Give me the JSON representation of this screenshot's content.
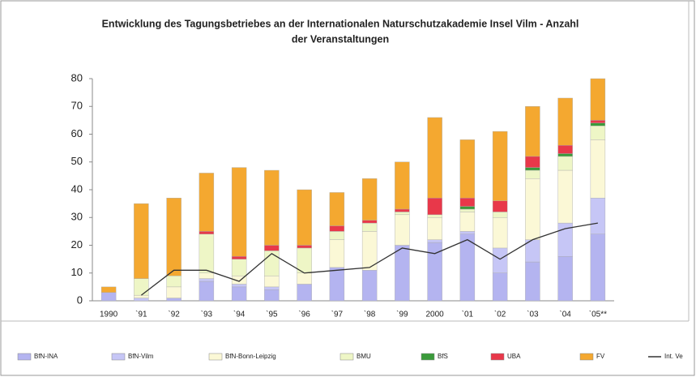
{
  "chart_data": {
    "type": "bar",
    "title_lines": [
      "Entwicklung des Tagungsbetriebes an der Internationalen Naturschutzakademie Insel Vilm - Anzahl",
      "der Veranstaltungen"
    ],
    "categories": [
      "1990",
      "`91",
      "`92",
      "`93",
      "`94",
      "`95",
      "`96",
      "`97",
      "`98",
      "`99",
      "2000",
      "`01",
      "`02",
      "`03",
      "`04",
      "`05**"
    ],
    "stacked": true,
    "series": [
      {
        "name": "BfN-INA",
        "color": "#b4b4f0",
        "values": [
          3,
          0,
          1,
          7,
          5,
          4,
          6,
          12,
          11,
          20,
          21,
          24,
          10,
          14,
          16,
          24
        ]
      },
      {
        "name": "BfN-Vilm",
        "color": "#c6c6f6",
        "values": [
          0,
          1,
          0,
          1,
          1,
          1,
          0,
          0,
          0,
          0,
          1,
          1,
          9,
          8,
          12,
          13
        ]
      },
      {
        "name": "BfN-Bonn-Leipzig",
        "color": "#fbf8d6",
        "values": [
          0,
          1,
          4,
          2,
          3,
          4,
          4,
          10,
          14,
          11,
          8,
          7,
          11,
          22,
          19,
          21
        ]
      },
      {
        "name": "BMU",
        "color": "#eef6c6",
        "values": [
          0,
          6,
          4,
          14,
          6,
          9,
          9,
          3,
          3,
          1,
          1,
          1,
          2,
          3,
          5,
          5
        ]
      },
      {
        "name": "BfS",
        "color": "#3a9a3a",
        "values": [
          0,
          0,
          0,
          0,
          0,
          0,
          0,
          0,
          0,
          0,
          0,
          1,
          0,
          1,
          1,
          1
        ]
      },
      {
        "name": "UBA",
        "color": "#e8384a",
        "values": [
          0,
          0,
          0,
          1,
          1,
          2,
          1,
          2,
          1,
          1,
          6,
          3,
          4,
          4,
          3,
          1
        ]
      },
      {
        "name": "FV",
        "color": "#f4a830",
        "values": [
          2,
          27,
          28,
          21,
          32,
          27,
          20,
          12,
          15,
          17,
          29,
          21,
          25,
          18,
          17,
          15
        ]
      },
      {
        "name": "Int. Ve",
        "type": "line",
        "color": "#333333",
        "values": [
          null,
          2,
          11,
          11,
          7,
          17,
          10,
          11,
          12,
          19,
          17,
          22,
          15,
          22,
          26,
          28
        ]
      }
    ],
    "ylim": [
      0,
      80
    ],
    "yticks": [
      0,
      10,
      20,
      30,
      40,
      50,
      60,
      70,
      80
    ],
    "grid": false,
    "legend": "bottom"
  }
}
